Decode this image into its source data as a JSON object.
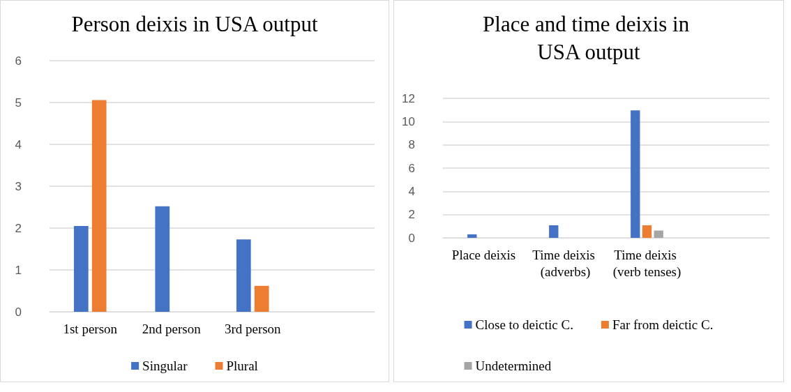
{
  "chart_data": [
    {
      "type": "bar",
      "title": "Person deixis in USA output",
      "categories": [
        "1st person",
        "2nd person",
        "3rd person",
        null
      ],
      "series": [
        {
          "name": "Singular",
          "color": "#4472c4",
          "values": [
            2.05,
            2.52,
            1.73,
            null
          ]
        },
        {
          "name": "Plural",
          "color": "#ed7d31",
          "values": [
            5.06,
            0,
            0.62,
            null
          ]
        }
      ],
      "ylim": [
        0,
        6
      ],
      "yticks": [
        0,
        1,
        2,
        3,
        4,
        5,
        6
      ],
      "grid": "y",
      "legend": "bottom"
    },
    {
      "type": "bar",
      "title": "Place and time deixis in USA output",
      "categories": [
        "Place deixis",
        "Time deixis (adverbs)",
        "Time deixis (verb tenses)",
        null
      ],
      "series": [
        {
          "name": "Close to deictic C.",
          "color": "#4472c4",
          "values": [
            0.3,
            1.08,
            10.96,
            null
          ]
        },
        {
          "name": "Far from deictic C.",
          "color": "#ed7d31",
          "values": [
            0,
            0,
            1.08,
            null
          ]
        },
        {
          "name": "Undetermined",
          "color": "#a5a5a5",
          "values": [
            0,
            0,
            0.63,
            null
          ]
        }
      ],
      "ylim": [
        0,
        12
      ],
      "yticks": [
        0,
        2,
        4,
        6,
        8,
        10,
        12
      ],
      "grid": "y",
      "legend": "bottom"
    }
  ]
}
